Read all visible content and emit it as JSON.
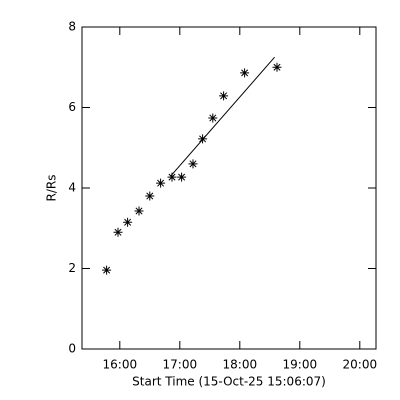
{
  "chart_data": {
    "type": "scatter",
    "xlabel": "Start Time (15-Oct-25 15:06:07)",
    "ylabel": "R/Rs",
    "xlim": [
      15.37,
      20.27
    ],
    "xticks": [
      {
        "value": 16,
        "label": "16:00"
      },
      {
        "value": 17,
        "label": "17:00"
      },
      {
        "value": 18,
        "label": "18:00"
      },
      {
        "value": 19,
        "label": "19:00"
      },
      {
        "value": 20,
        "label": "20:00"
      }
    ],
    "ylim": [
      0,
      8
    ],
    "yticks": [
      0,
      2,
      4,
      6,
      8
    ],
    "series": [
      {
        "type": "scatter",
        "marker": "asterisk",
        "color": "#000000",
        "x": [
          15.78,
          15.97,
          16.13,
          16.32,
          16.5,
          16.68,
          16.87,
          17.03,
          17.22,
          17.38,
          17.55,
          17.73,
          18.08,
          18.62
        ],
        "values": [
          1.96,
          2.9,
          3.15,
          3.43,
          3.8,
          4.12,
          4.27,
          4.27,
          4.6,
          5.22,
          5.74,
          6.29,
          6.86,
          7.0
        ]
      },
      {
        "type": "line",
        "color": "#000000",
        "x": [
          16.85,
          18.58
        ],
        "values": [
          4.3,
          7.25
        ]
      }
    ]
  }
}
